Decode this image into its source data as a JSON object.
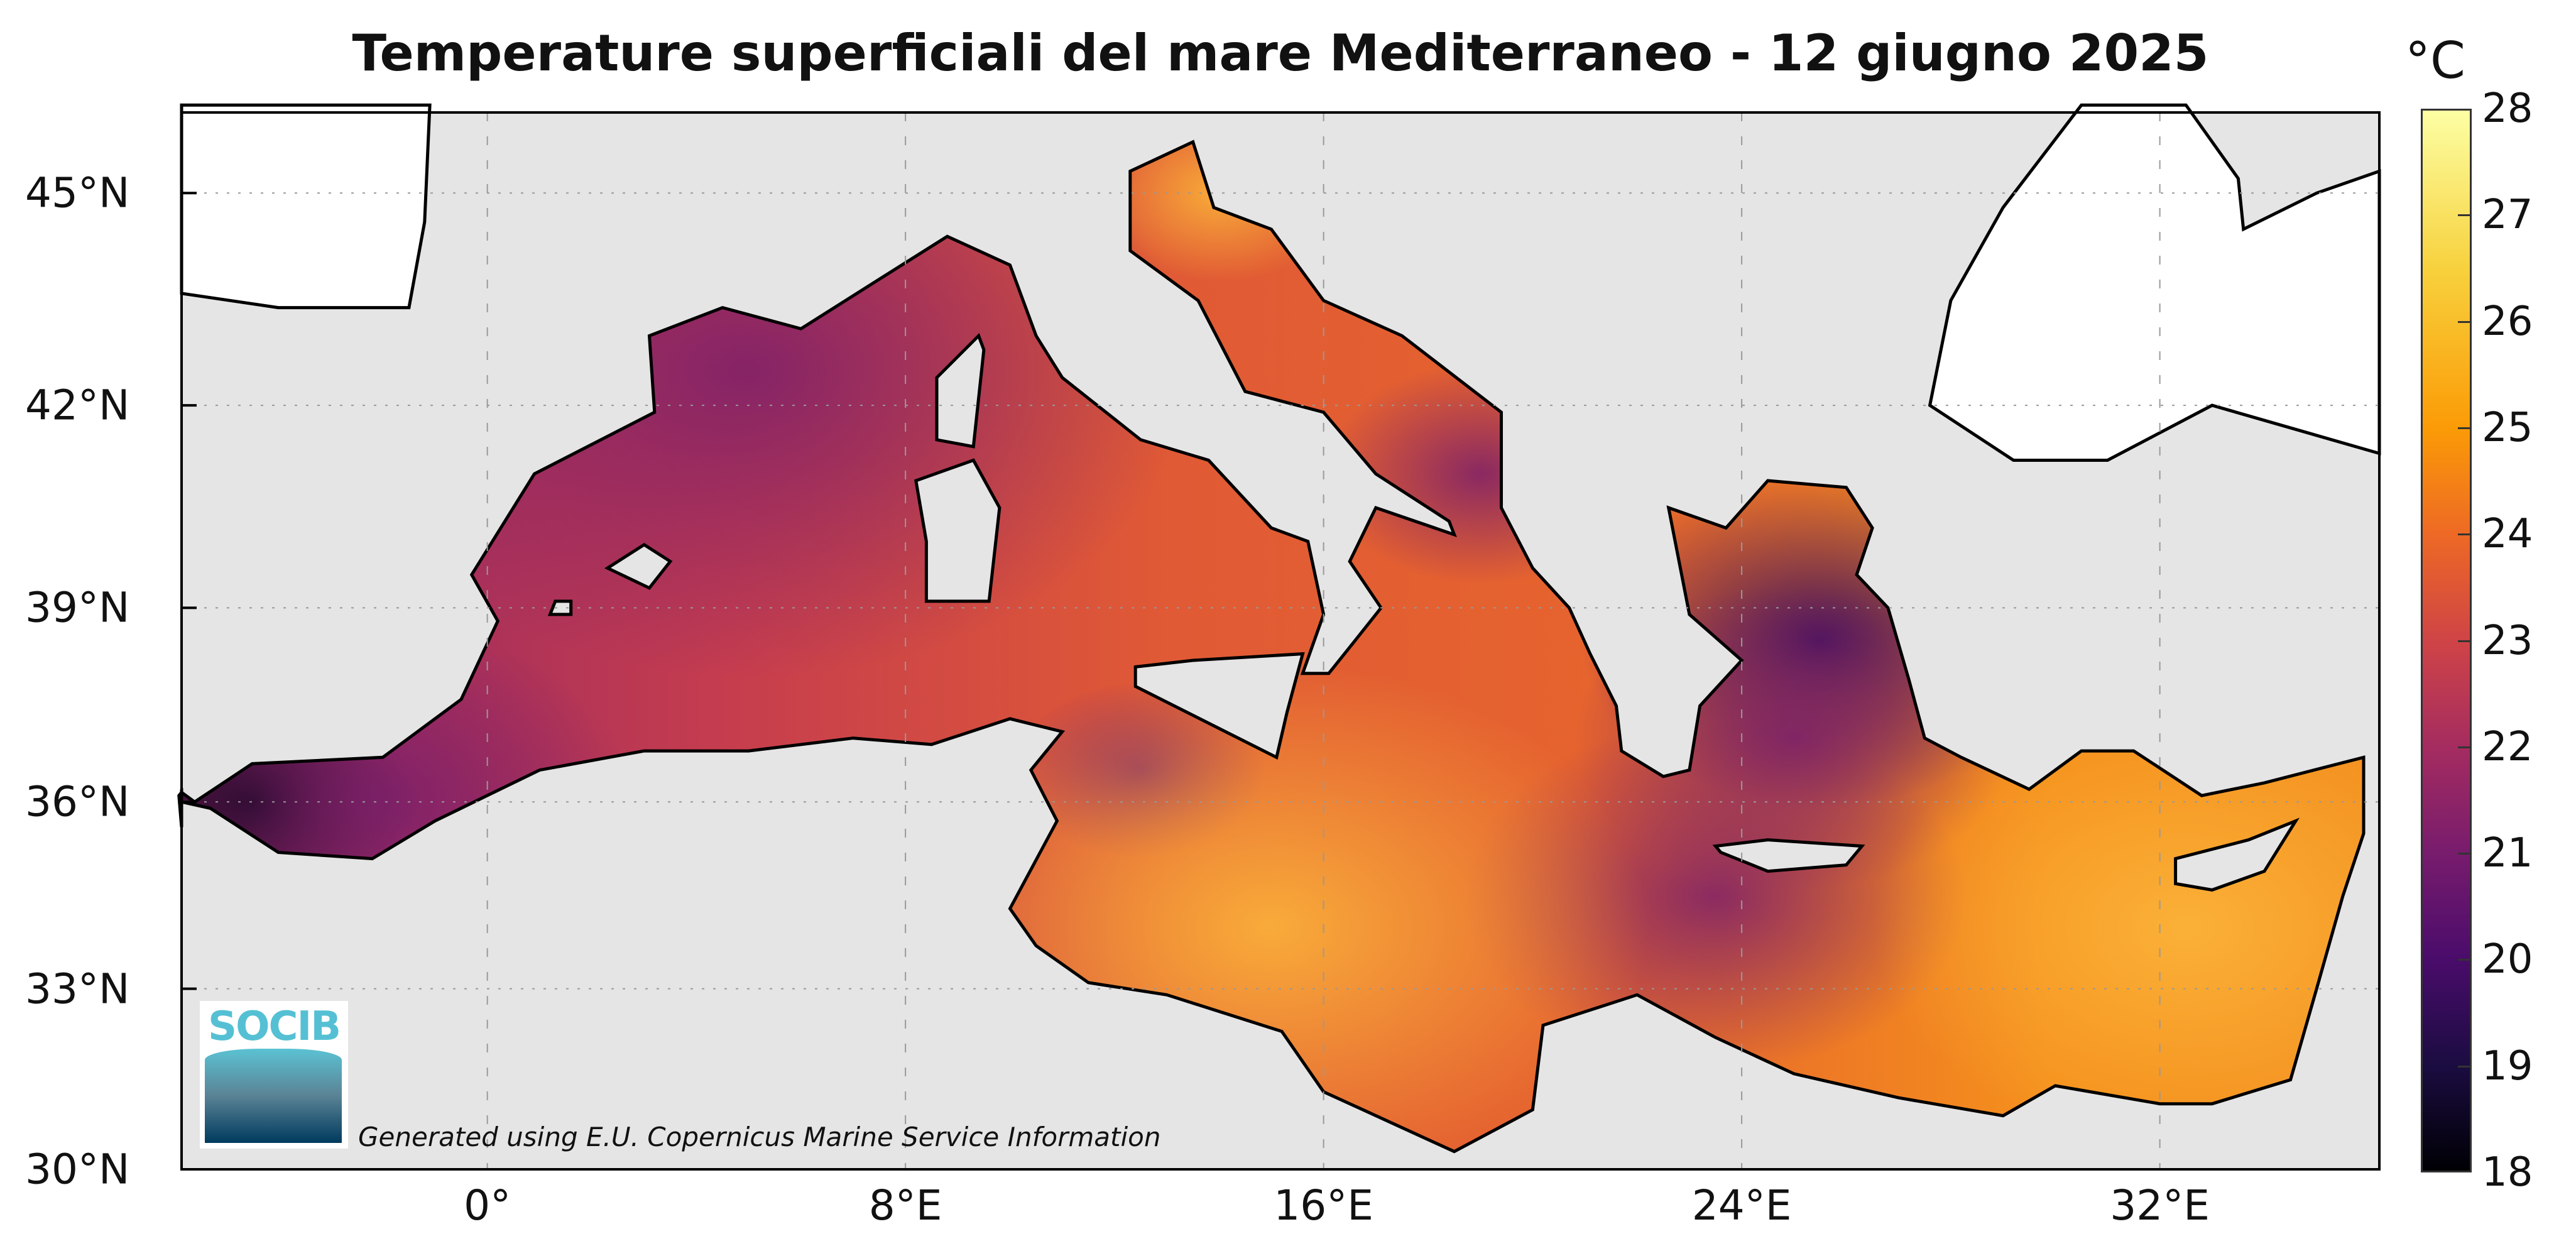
{
  "title": "Temperature superficiali del mare Mediterraneo - 12 giugno 2025",
  "map": {
    "projection": "mercator",
    "lon_range": [
      -5.85,
      36.2
    ],
    "lat_range": [
      30,
      46.1
    ],
    "lat_ticks": [
      {
        "value": 45,
        "label": "45°N"
      },
      {
        "value": 42,
        "label": "42°N"
      },
      {
        "value": 39,
        "label": "39°N"
      },
      {
        "value": 36,
        "label": "36°N"
      },
      {
        "value": 33,
        "label": "33°N"
      },
      {
        "value": 30,
        "label": "30°N"
      }
    ],
    "lon_ticks": [
      {
        "value": 0,
        "label": "0°"
      },
      {
        "value": 8,
        "label": "8°E"
      },
      {
        "value": 16,
        "label": "16°E"
      },
      {
        "value": 24,
        "label": "24°E"
      },
      {
        "value": 32,
        "label": "32°E"
      }
    ],
    "land_color": "#e5e5e5",
    "grid": "dotted"
  },
  "colorbar": {
    "unit": "°C",
    "colormap": "inferno",
    "range": [
      18,
      28
    ],
    "ticks": [
      "18",
      "19",
      "20",
      "21",
      "22",
      "23",
      "24",
      "25",
      "26",
      "27",
      "28"
    ]
  },
  "logo": {
    "text": "SOCIB"
  },
  "credit": "Generated using E.U. Copernicus Marine Service Information"
}
